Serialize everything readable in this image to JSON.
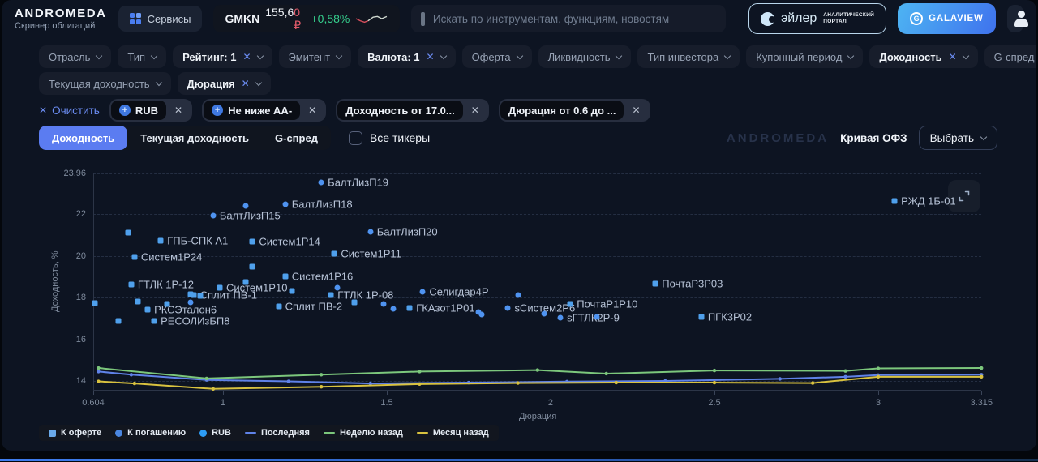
{
  "header": {
    "logo": "ANDROMEDA",
    "subtitle": "Скринер облигаций",
    "services_label": "Сервисы",
    "ticker": {
      "symbol": "GMKN",
      "price": "155,6",
      "price_last": "0 ₽",
      "change": "+0,58%"
    },
    "search_placeholder": "Искать по инструментам, функциям, новостям",
    "euler": {
      "name": "эйлер",
      "tag1": "АНАЛИТИЧЕСКИЙ",
      "tag2": "ПОРТАЛ"
    },
    "galaview_label": "GALAVIEW",
    "colors": {
      "price_down": "#e05a6a",
      "price_up": "#35cf8d"
    }
  },
  "filters": {
    "row1": [
      {
        "name": "otrasl",
        "label": "Отрасль",
        "active": false,
        "clearable": false
      },
      {
        "name": "tip",
        "label": "Тип",
        "active": false,
        "clearable": false
      },
      {
        "name": "reyting",
        "label": "Рейтинг: 1",
        "active": true,
        "clearable": true
      },
      {
        "name": "emitent",
        "label": "Эмитент",
        "active": false,
        "clearable": false
      },
      {
        "name": "valyuta",
        "label": "Валюта: 1",
        "active": true,
        "clearable": true
      },
      {
        "name": "oferta",
        "label": "Оферта",
        "active": false,
        "clearable": false
      },
      {
        "name": "likvidnost",
        "label": "Ликвидность",
        "active": false,
        "clearable": false
      },
      {
        "name": "tip-investora",
        "label": "Тип инвестора",
        "active": false,
        "clearable": false
      },
      {
        "name": "kuponny-period",
        "label": "Купонный период",
        "active": false,
        "clearable": false
      },
      {
        "name": "dohodnost",
        "label": "Доходность",
        "active": true,
        "clearable": true
      },
      {
        "name": "g-spred",
        "label": "G-спред",
        "active": false,
        "clearable": false
      }
    ],
    "row2": [
      {
        "name": "tekushchaya-dohodnost",
        "label": "Текущая доходность",
        "active": false,
        "clearable": false
      },
      {
        "name": "dyuratsiya",
        "label": "Дюрация",
        "active": true,
        "clearable": true
      }
    ]
  },
  "applied": {
    "clear_label": "Очистить",
    "chips": [
      {
        "name": "rub",
        "label": "RUB",
        "plus": true
      },
      {
        "name": "rating-aa",
        "label": "Не ниже АА-",
        "plus": true
      },
      {
        "name": "yield-from",
        "label": "Доходность от 17.0...",
        "plus": false
      },
      {
        "name": "duration-range",
        "label": "Дюрация от 0.6 до ...",
        "plus": false
      }
    ]
  },
  "toolbar": {
    "tabs": [
      {
        "name": "yield",
        "label": "Доходность",
        "active": true
      },
      {
        "name": "current-yield",
        "label": "Текущая доходность",
        "active": false
      },
      {
        "name": "g-spread",
        "label": "G-спред",
        "active": false
      }
    ],
    "all_tickers_label": "Все тикеры",
    "watermark": "ANDROMEDA",
    "curve_label": "Кривая ОФЗ",
    "select_label": "Выбрать"
  },
  "chart_data": {
    "type": "scatter",
    "xlabel": "Дюрация",
    "ylabel": "Доходность, %",
    "xlim": [
      0.604,
      3.315
    ],
    "ylim": [
      13.55,
      23.96
    ],
    "grid": "dashed-horizontal",
    "x_ticks": [
      {
        "label": "0.604",
        "value": 0.604
      },
      {
        "label": "1",
        "value": 1
      },
      {
        "label": "1.5",
        "value": 1.5
      },
      {
        "label": "2",
        "value": 2
      },
      {
        "label": "2.5",
        "value": 2.5
      },
      {
        "label": "3",
        "value": 3
      },
      {
        "label": "3.315",
        "value": 3.315
      }
    ],
    "y_ticks": [
      {
        "label": "23.96",
        "value": 23.96
      },
      {
        "label": "22",
        "value": 22
      },
      {
        "label": "20",
        "value": 20
      },
      {
        "label": "18",
        "value": 18
      },
      {
        "label": "16",
        "value": 16
      },
      {
        "label": "14",
        "value": 14
      }
    ],
    "marker_colors": {
      "square": "#4fa0ec",
      "circle": "#4f93f0"
    },
    "points": [
      {
        "name": "БалтЛизП19",
        "x": 1.3,
        "y": 23.53,
        "marker": "circle"
      },
      {
        "name": "РЖД 1Б-01",
        "x": 3.05,
        "y": 22.63,
        "marker": "square"
      },
      {
        "name": "БалтЛизП18",
        "x": 1.19,
        "y": 22.47,
        "marker": "circle"
      },
      {
        "name": "БалтЛизП15",
        "x": 0.97,
        "y": 21.92,
        "marker": "circle"
      },
      {
        "name": "БалтЛизП20",
        "x": 1.45,
        "y": 21.14,
        "marker": "circle"
      },
      {
        "name": "ГПБ-СПК А1",
        "x": 0.81,
        "y": 20.71,
        "marker": "square"
      },
      {
        "name": "Систем1Р14",
        "x": 1.09,
        "y": 20.67,
        "marker": "square"
      },
      {
        "name": "Систем1Р11",
        "x": 1.34,
        "y": 20.08,
        "marker": "square"
      },
      {
        "name": "Систем1Р24",
        "x": 0.73,
        "y": 19.96,
        "marker": "square"
      },
      {
        "name": "Систем1Р16",
        "x": 1.19,
        "y": 19.02,
        "marker": "square"
      },
      {
        "name": "ГТЛК 1Р-12",
        "x": 0.72,
        "y": 18.63,
        "marker": "square"
      },
      {
        "name": "Систем1Р10",
        "x": 0.99,
        "y": 18.47,
        "marker": "square"
      },
      {
        "name": "Селигдар4Р",
        "x": 1.61,
        "y": 18.27,
        "marker": "circle"
      },
      {
        "name": "ПочтаР3Р03",
        "x": 2.32,
        "y": 18.67,
        "marker": "square"
      },
      {
        "name": "Сплит ПВ-1",
        "x": 0.91,
        "y": 18.12,
        "marker": "square"
      },
      {
        "name": "ГТЛК 1Р-08",
        "x": 1.33,
        "y": 18.12,
        "marker": "square"
      },
      {
        "name": "Сплит ПВ-2",
        "x": 1.17,
        "y": 17.57,
        "marker": "square"
      },
      {
        "name": "ГКАзот1Р01",
        "x": 1.57,
        "y": 17.49,
        "marker": "square"
      },
      {
        "name": "sСистем2Р6",
        "x": 1.87,
        "y": 17.49,
        "marker": "circle"
      },
      {
        "name": "ПочтаР1Р10",
        "x": 2.06,
        "y": 17.69,
        "marker": "square"
      },
      {
        "name": "sГТЛК2Р-9",
        "x": 2.03,
        "y": 17.02,
        "marker": "circle"
      },
      {
        "name": "РКСЭталон6",
        "x": 0.77,
        "y": 17.41,
        "marker": "square"
      },
      {
        "name": "РЕСОЛИзБП8",
        "x": 0.79,
        "y": 16.86,
        "marker": "square"
      },
      {
        "name": "ПГК3Р02",
        "x": 2.46,
        "y": 17.06,
        "marker": "square"
      }
    ],
    "unlabeled_points": [
      {
        "x": 0.61,
        "y": 17.73,
        "marker": "square"
      },
      {
        "x": 0.68,
        "y": 16.86,
        "marker": "square"
      },
      {
        "x": 0.74,
        "y": 17.8,
        "marker": "square"
      },
      {
        "x": 0.71,
        "y": 21.1,
        "marker": "square"
      },
      {
        "x": 1.07,
        "y": 22.39,
        "marker": "circle"
      },
      {
        "x": 1.09,
        "y": 19.49,
        "marker": "square"
      },
      {
        "x": 0.83,
        "y": 17.69,
        "marker": "square"
      },
      {
        "x": 0.9,
        "y": 18.16,
        "marker": "square"
      },
      {
        "x": 0.93,
        "y": 18.08,
        "marker": "square"
      },
      {
        "x": 0.9,
        "y": 17.76,
        "marker": "circle"
      },
      {
        "x": 1.07,
        "y": 18.75,
        "marker": "square"
      },
      {
        "x": 1.21,
        "y": 18.31,
        "marker": "square"
      },
      {
        "x": 1.35,
        "y": 18.47,
        "marker": "circle"
      },
      {
        "x": 1.4,
        "y": 17.76,
        "marker": "square"
      },
      {
        "x": 1.49,
        "y": 17.69,
        "marker": "circle"
      },
      {
        "x": 1.52,
        "y": 17.45,
        "marker": "circle"
      },
      {
        "x": 1.78,
        "y": 17.3,
        "marker": "circle"
      },
      {
        "x": 1.79,
        "y": 17.18,
        "marker": "circle"
      },
      {
        "x": 1.9,
        "y": 18.12,
        "marker": "circle"
      },
      {
        "x": 1.98,
        "y": 17.22,
        "marker": "circle"
      },
      {
        "x": 2.14,
        "y": 17.06,
        "marker": "circle"
      }
    ],
    "series": [
      {
        "name": "Последняя",
        "color": "#5f82e8",
        "x": [
          0.62,
          0.72,
          0.95,
          1.2,
          1.45,
          1.75,
          2.05,
          2.35,
          2.7,
          2.9,
          3.0,
          3.315
        ],
        "y": [
          14.45,
          14.3,
          14.05,
          13.98,
          13.88,
          13.92,
          13.97,
          14.0,
          14.1,
          14.2,
          14.28,
          14.3
        ]
      },
      {
        "name": "Неделю назад",
        "color": "#7cc77c",
        "x": [
          0.62,
          0.95,
          1.3,
          1.6,
          1.96,
          2.17,
          2.5,
          2.9,
          3.0,
          3.315
        ],
        "y": [
          14.62,
          14.12,
          14.3,
          14.45,
          14.52,
          14.35,
          14.5,
          14.48,
          14.6,
          14.62
        ]
      },
      {
        "name": "Месяц назад",
        "color": "#d9c23f",
        "x": [
          0.62,
          0.73,
          0.97,
          1.3,
          1.6,
          1.9,
          2.2,
          2.5,
          2.8,
          3.0,
          3.315
        ],
        "y": [
          13.98,
          13.88,
          13.62,
          13.72,
          13.85,
          13.9,
          13.92,
          13.92,
          13.9,
          14.2,
          14.2
        ]
      }
    ],
    "legend": [
      {
        "label": "К оферте",
        "marker": "square",
        "color": "#6aa9e9"
      },
      {
        "label": "К погашению",
        "marker": "circle",
        "color": "#4a86e0"
      },
      {
        "label": "RUB",
        "marker": "circle",
        "color": "#2d9cf4"
      },
      {
        "label": "Последняя",
        "marker": "line",
        "color": "#5f82e8"
      },
      {
        "label": "Неделю назад",
        "marker": "line",
        "color": "#7cc77c"
      },
      {
        "label": "Месяц назад",
        "marker": "line",
        "color": "#d9c23f"
      }
    ],
    "legend_position": "bottom-left"
  }
}
